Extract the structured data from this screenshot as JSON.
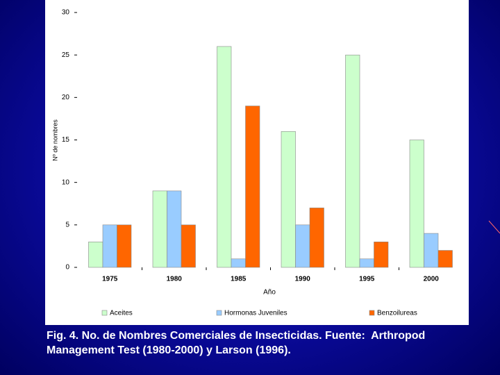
{
  "chart_data": {
    "type": "bar",
    "x_label": "Año",
    "y_label": "Nº de nombres",
    "categories": [
      "1975",
      "1980",
      "1985",
      "1990",
      "1995",
      "2000"
    ],
    "series": [
      {
        "name": "Aceites",
        "color": "#ccffcc",
        "values": [
          3,
          9,
          26,
          16,
          25,
          15
        ]
      },
      {
        "name": "Hormonas Juveniles",
        "color": "#99ccff",
        "values": [
          5,
          9,
          1,
          5,
          1,
          4
        ]
      },
      {
        "name": "Benzoilureas",
        "color": "#ff6600",
        "values": [
          5,
          5,
          19,
          7,
          3,
          2
        ]
      }
    ],
    "ylim": [
      0,
      30
    ],
    "yticks": [
      0,
      5,
      10,
      15,
      20,
      25,
      30
    ],
    "grid": false,
    "legend": "bottom"
  },
  "caption_lines": [
    "Fig. 4. No. de Nombres Comerciales de Insecticidas. Fuente:  Arthropod",
    "Management Test (1980-2000) y Larson (1996)."
  ]
}
